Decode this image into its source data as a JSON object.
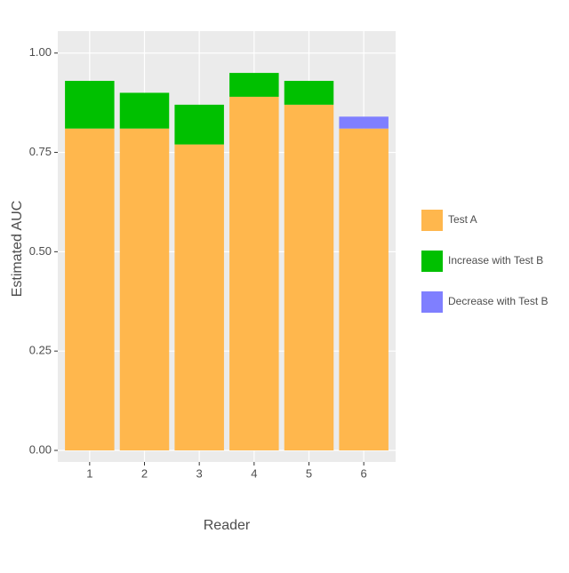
{
  "chart_data": {
    "type": "stacked-bar",
    "categories": [
      "1",
      "2",
      "3",
      "4",
      "5",
      "6"
    ],
    "series": [
      {
        "name": "Test A",
        "color": "#ffb74d",
        "values": [
          0.81,
          0.81,
          0.77,
          0.89,
          0.87,
          0.81
        ]
      },
      {
        "name": "Increase with Test B",
        "color": "#00c000",
        "values": [
          0.12,
          0.09,
          0.1,
          0.06,
          0.06,
          null
        ]
      },
      {
        "name": "Decrease with Test B",
        "color": "#7f7fff",
        "values": [
          null,
          null,
          null,
          null,
          null,
          0.03
        ]
      }
    ],
    "ylim": [
      0,
      1.05
    ],
    "yticks": [
      {
        "value": 0,
        "label": "0.00"
      },
      {
        "value": 0.25,
        "label": "0.25"
      },
      {
        "value": 0.5,
        "label": "0.50"
      },
      {
        "value": 0.75,
        "label": "0.75"
      },
      {
        "value": 1,
        "label": "1.00"
      }
    ],
    "x_label": "Reader",
    "y_label": "Estimated AUC",
    "grid": true
  }
}
